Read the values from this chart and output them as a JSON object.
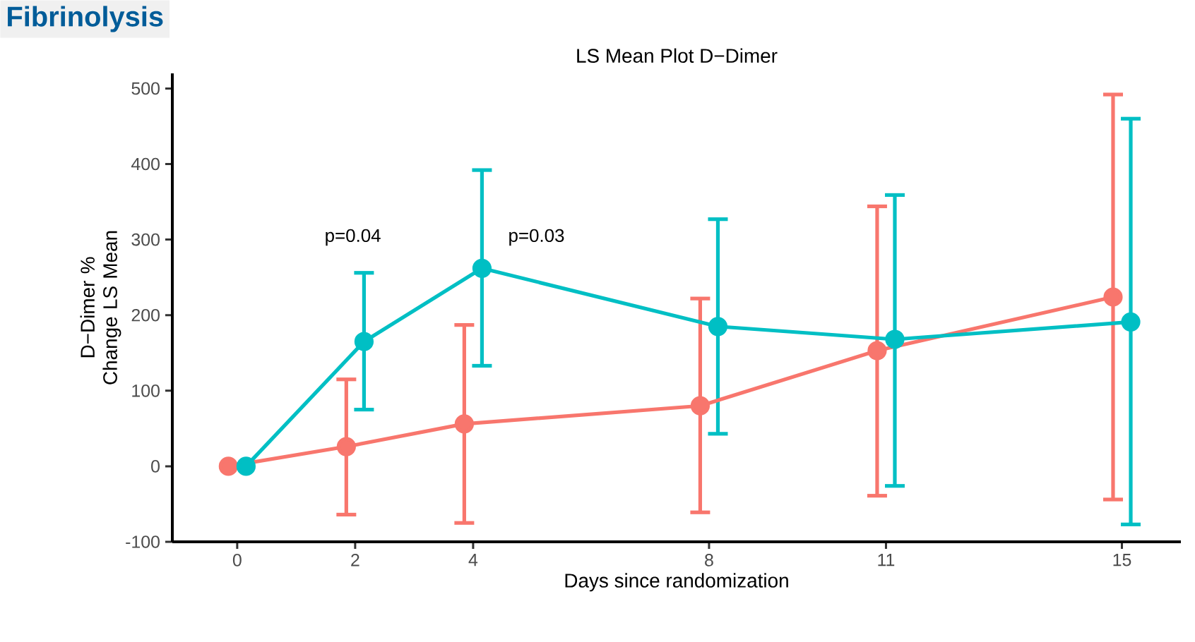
{
  "chart_data": {
    "type": "line",
    "title": "LS Mean Plot D−Dimer",
    "xlabel": "Days since randomization",
    "ylabel": "D−Dimer % Change LS Mean",
    "xlim": [
      -1.1,
      16
    ],
    "ylim": [
      -100,
      520
    ],
    "xticks": [
      0,
      2,
      4,
      8,
      11,
      15
    ],
    "yticks": [
      -100,
      0,
      100,
      200,
      300,
      400,
      500
    ],
    "marker": "circle",
    "line_style": "solid",
    "series": [
      {
        "color": "#f8766d",
        "x": [
          -0.15,
          1.85,
          3.85,
          7.85,
          10.85,
          14.85
        ],
        "values": [
          0,
          26,
          56,
          80,
          153,
          224
        ],
        "errors": [
          null,
          [
            -64,
            115
          ],
          [
            -75,
            187
          ],
          [
            -61,
            222
          ],
          [
            -39,
            344
          ],
          [
            -44,
            492
          ]
        ]
      },
      {
        "color": "#00bfc4",
        "x": [
          0.15,
          2.15,
          4.15,
          8.15,
          11.15,
          15.15
        ],
        "values": [
          0,
          165,
          262,
          185,
          168,
          191
        ],
        "errors": [
          null,
          [
            75,
            256
          ],
          [
            133,
            392
          ],
          [
            43,
            327
          ],
          [
            -26,
            359
          ],
          [
            -77,
            460
          ]
        ]
      }
    ],
    "annotations": [
      "Fibrinolysis",
      "p=0.04",
      "p=0.03"
    ]
  }
}
